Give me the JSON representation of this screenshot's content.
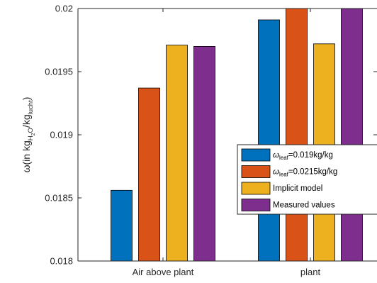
{
  "chart_data": {
    "type": "bar",
    "categories": [
      "Air above plant",
      "plant"
    ],
    "series": [
      {
        "name": "ω_leaf=0.019kg/kg",
        "name_main": "ω",
        "name_sub": "leaf",
        "name_rest": "=0.019kg/kg",
        "values": [
          0.01856,
          0.01991
        ],
        "color": "#0072BD"
      },
      {
        "name": "ω_leaf=0.0215kg/kg",
        "name_main": "ω",
        "name_sub": "leaf",
        "name_rest": "=0.0215kg/kg",
        "values": [
          0.01937,
          0.02
        ],
        "color": "#D95319"
      },
      {
        "name": "Implicit model",
        "name_main": "Implicit model",
        "name_sub": "",
        "name_rest": "",
        "values": [
          0.01971,
          0.01972
        ],
        "color": "#EDB120"
      },
      {
        "name": "Measured values",
        "name_main": "Measured values",
        "name_sub": "",
        "name_rest": "",
        "values": [
          0.0197,
          0.02
        ],
        "color": "#7E2F8E"
      }
    ],
    "ylim": [
      0.018,
      0.02
    ],
    "yticks": [
      0.018,
      0.0185,
      0.019,
      0.0195,
      0.02
    ],
    "ytick_labels": [
      "0.018",
      "0.0185",
      "0.019",
      "0.0195",
      "0.02"
    ],
    "ylabel": {
      "prefix": "ω(in kg",
      "sub1": "H",
      "sub2": "2",
      "sub3": "O",
      "mid": "/kg",
      "sub4": "lucht",
      "suffix": ")"
    },
    "xlabel": "",
    "title": "",
    "grid": false,
    "legend_placement": "right-middle"
  }
}
